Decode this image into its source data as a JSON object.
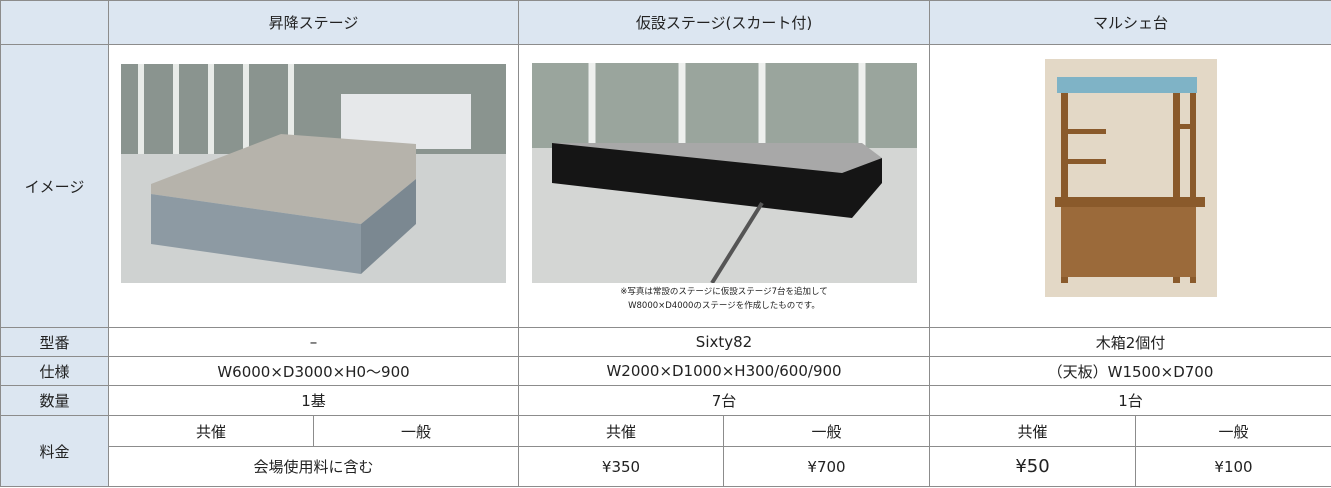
{
  "table": {
    "columns": [
      "昇降ステージ",
      "仮設ステージ(スカート付)",
      "マルシェ台"
    ],
    "image_row": {
      "label": "イメージ",
      "note": [
        "※写真は常設のステージに仮設ステージ7台を追加して",
        "W8000×D4000のステージを作成したものです。"
      ]
    },
    "spec_rows": [
      {
        "label": "型番",
        "values": [
          "–",
          "Sixty82",
          "木箱2個付"
        ]
      },
      {
        "label": "仕様",
        "values": [
          "W6000×D3000×H0～900",
          "W2000×D1000×H300/600/900",
          "（天板）W1500×D700"
        ]
      },
      {
        "label": "数量",
        "values": [
          "1基",
          "7台",
          "1台"
        ]
      }
    ],
    "price_row": {
      "label": "料金",
      "sub_headers": [
        [
          "共催",
          "一般"
        ],
        [
          "共催",
          "一般"
        ],
        [
          "共催",
          "一般"
        ]
      ],
      "prices": [
        [
          "会場使用料に含む"
        ],
        [
          "¥350",
          "¥700"
        ],
        [
          "¥50",
          "¥100"
        ]
      ]
    }
  }
}
